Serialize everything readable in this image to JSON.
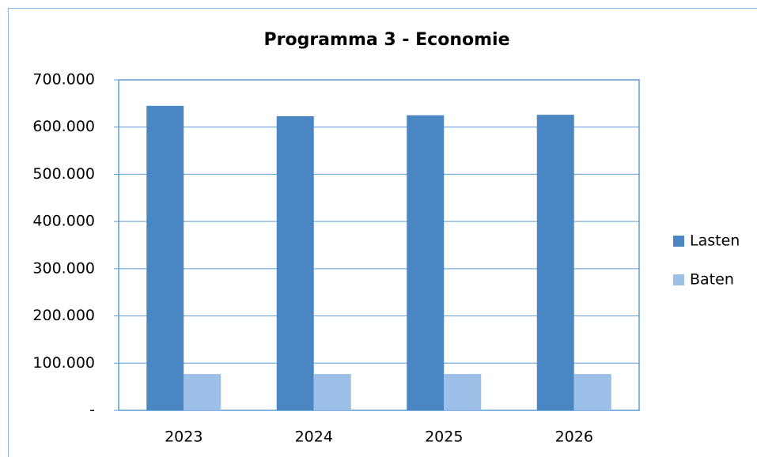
{
  "chart_data": {
    "type": "bar",
    "title": "Programma 3 - Economie",
    "categories": [
      "2023",
      "2024",
      "2025",
      "2026"
    ],
    "series": [
      {
        "name": "Lasten",
        "color": "#4a86c2",
        "values": [
          645000,
          623000,
          625000,
          626000
        ]
      },
      {
        "name": "Baten",
        "color": "#9dc0e8",
        "values": [
          77000,
          77000,
          77000,
          77000
        ]
      }
    ],
    "ylim": [
      0,
      700000
    ],
    "yticks": [
      {
        "value": 0,
        "label": "-"
      },
      {
        "value": 100000,
        "label": "100.000"
      },
      {
        "value": 200000,
        "label": "200.000"
      },
      {
        "value": 300000,
        "label": "300.000"
      },
      {
        "value": 400000,
        "label": "400.000"
      },
      {
        "value": 500000,
        "label": "500.000"
      },
      {
        "value": 600000,
        "label": "600.000"
      },
      {
        "value": 700000,
        "label": "700.000"
      }
    ],
    "grid": true,
    "legend": "right"
  }
}
